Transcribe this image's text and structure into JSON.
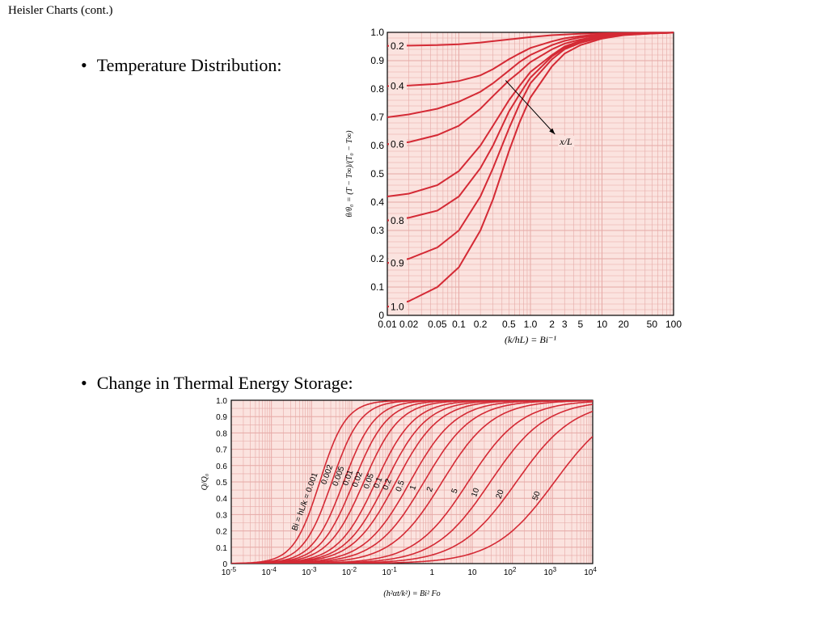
{
  "slide": {
    "title": "Heisler Charts (cont.)",
    "bullets": [
      "Temperature Distribution:",
      "Change in Thermal Energy Storage:"
    ],
    "bullet_glyph": "•"
  },
  "chart_data": [
    {
      "type": "line",
      "xscale": "log",
      "xlim": [
        0.01,
        100
      ],
      "ylim": [
        0,
        1
      ],
      "grid": true,
      "background": "#fbe3df",
      "line_color": "#d42a35",
      "x_ticks": [
        "0.01",
        "0.02",
        "0.05",
        "0.1",
        "0.2",
        "0.5",
        "1.0",
        "2",
        "3",
        "5",
        "10",
        "20",
        "50",
        "100"
      ],
      "x_tick_values": [
        0.01,
        0.02,
        0.05,
        0.1,
        0.2,
        0.5,
        1,
        2,
        3,
        5,
        10,
        20,
        50,
        100
      ],
      "y_ticks": [
        "0",
        "0.1",
        "0.2",
        "0.3",
        "0.4",
        "0.5",
        "0.6",
        "0.7",
        "0.8",
        "0.9",
        "1.0"
      ],
      "y_tick_values": [
        0,
        0.1,
        0.2,
        0.3,
        0.4,
        0.5,
        0.6,
        0.7,
        0.8,
        0.9,
        1.0
      ],
      "xlabel": "(k/hL) = Bi⁻¹",
      "ylabel": "θ/θ₀ = (T − T∞)/(T₀ − T∞)",
      "annotation": {
        "text": "x/L",
        "from": [
          0.45,
          0.83
        ],
        "to": [
          2.2,
          0.64
        ]
      },
      "series": [
        {
          "name": "0.2",
          "x": [
            0.01,
            0.02,
            0.05,
            0.1,
            0.2,
            0.5,
            1,
            2,
            5,
            10,
            20,
            50,
            100
          ],
          "y": [
            0.952,
            0.953,
            0.955,
            0.958,
            0.964,
            0.975,
            0.983,
            0.99,
            0.995,
            0.997,
            0.998,
            0.999,
            0.999
          ]
        },
        {
          "name": "0.4",
          "x": [
            0.01,
            0.02,
            0.05,
            0.1,
            0.2,
            0.3,
            0.5,
            0.7,
            1,
            2,
            3,
            5,
            10,
            20,
            50,
            100
          ],
          "y": [
            0.81,
            0.812,
            0.818,
            0.828,
            0.848,
            0.87,
            0.905,
            0.925,
            0.945,
            0.968,
            0.979,
            0.987,
            0.993,
            0.996,
            0.998,
            0.999
          ]
        },
        {
          "name": "",
          "x": [
            0.01,
            0.02,
            0.05,
            0.1,
            0.2,
            0.3,
            0.5,
            0.7,
            1,
            2,
            3,
            5,
            10,
            20,
            50,
            100
          ],
          "y": [
            0.7,
            0.71,
            0.73,
            0.755,
            0.79,
            0.82,
            0.865,
            0.895,
            0.92,
            0.955,
            0.97,
            0.982,
            0.99,
            0.995,
            0.998,
            0.999
          ]
        },
        {
          "name": "0.6",
          "x": [
            0.01,
            0.02,
            0.05,
            0.1,
            0.2,
            0.3,
            0.5,
            0.7,
            1,
            2,
            3,
            5,
            10,
            20,
            50,
            100
          ],
          "y": [
            0.605,
            0.612,
            0.637,
            0.67,
            0.73,
            0.775,
            0.83,
            0.86,
            0.895,
            0.94,
            0.96,
            0.975,
            0.988,
            0.994,
            0.997,
            0.999
          ]
        },
        {
          "name": "",
          "x": [
            0.01,
            0.02,
            0.05,
            0.1,
            0.2,
            0.3,
            0.5,
            0.7,
            1,
            2,
            3,
            5,
            10,
            20,
            50,
            100
          ],
          "y": [
            0.42,
            0.43,
            0.46,
            0.51,
            0.6,
            0.67,
            0.76,
            0.81,
            0.86,
            0.92,
            0.95,
            0.97,
            0.985,
            0.993,
            0.997,
            0.999
          ]
        },
        {
          "name": "0.8",
          "x": [
            0.01,
            0.02,
            0.05,
            0.1,
            0.2,
            0.3,
            0.5,
            0.7,
            1,
            2,
            3,
            5,
            10,
            20,
            50,
            100
          ],
          "y": [
            0.335,
            0.345,
            0.37,
            0.42,
            0.52,
            0.6,
            0.72,
            0.78,
            0.84,
            0.915,
            0.945,
            0.965,
            0.983,
            0.992,
            0.997,
            0.999
          ]
        },
        {
          "name": "0.9",
          "x": [
            0.01,
            0.02,
            0.05,
            0.1,
            0.2,
            0.3,
            0.5,
            0.7,
            1,
            2,
            3,
            5,
            10,
            20,
            50,
            100
          ],
          "y": [
            0.185,
            0.2,
            0.24,
            0.3,
            0.42,
            0.52,
            0.66,
            0.745,
            0.82,
            0.905,
            0.94,
            0.963,
            0.982,
            0.991,
            0.996,
            0.999
          ]
        },
        {
          "name": "1.0",
          "x": [
            0.01,
            0.02,
            0.05,
            0.1,
            0.2,
            0.3,
            0.5,
            0.7,
            1,
            2,
            3,
            5,
            10,
            20,
            50,
            100
          ],
          "y": [
            0.03,
            0.05,
            0.1,
            0.17,
            0.3,
            0.41,
            0.58,
            0.68,
            0.77,
            0.88,
            0.925,
            0.955,
            0.978,
            0.99,
            0.996,
            0.999
          ]
        }
      ]
    },
    {
      "type": "line",
      "xscale": "log",
      "xlim": [
        1e-05,
        10000
      ],
      "ylim": [
        0,
        1
      ],
      "grid": true,
      "background": "#fbe3df",
      "line_color": "#d42a35",
      "x_ticks": [
        "10",
        "10",
        "10",
        "10",
        "10",
        "1",
        "10",
        "10",
        "10",
        "10"
      ],
      "x_tick_exponents": [
        "-5",
        "-4",
        "-3",
        "-2",
        "-1",
        "",
        "",
        "2",
        "3",
        "4"
      ],
      "x_tick_values": [
        1e-05,
        0.0001,
        0.001,
        0.01,
        0.1,
        1,
        10,
        100,
        1000,
        10000
      ],
      "y_ticks": [
        "0",
        "0.1",
        "0.2",
        "0.3",
        "0.4",
        "0.5",
        "0.6",
        "0.7",
        "0.8",
        "0.9",
        "1.0"
      ],
      "y_tick_values": [
        0,
        0.1,
        0.2,
        0.3,
        0.4,
        0.5,
        0.6,
        0.7,
        0.8,
        0.9,
        1.0
      ],
      "xlabel": "(h²αt/k²) = Bi² Fo",
      "ylabel": "Q/Q₀",
      "series_label_prefix": "Bi = hL/k = ",
      "series": [
        {
          "name": "0.001",
          "midpoint": 0.0016
        },
        {
          "name": "0.002",
          "midpoint": 0.0032
        },
        {
          "name": "0.005",
          "midpoint": 0.0063
        },
        {
          "name": "0.01",
          "midpoint": 0.0112
        },
        {
          "name": "0.02",
          "midpoint": 0.02
        },
        {
          "name": "0.05",
          "midpoint": 0.0398
        },
        {
          "name": "0.1",
          "midpoint": 0.0708
        },
        {
          "name": "0.2",
          "midpoint": 0.126
        },
        {
          "name": "0.5",
          "midpoint": 0.282
        },
        {
          "name": "1",
          "midpoint": 0.631
        },
        {
          "name": "2",
          "midpoint": 1.78
        },
        {
          "name": "5",
          "midpoint": 7.94
        },
        {
          "name": "10",
          "midpoint": 28.2
        },
        {
          "name": "20",
          "midpoint": 126
        },
        {
          "name": "50",
          "midpoint": 1120
        }
      ]
    }
  ]
}
